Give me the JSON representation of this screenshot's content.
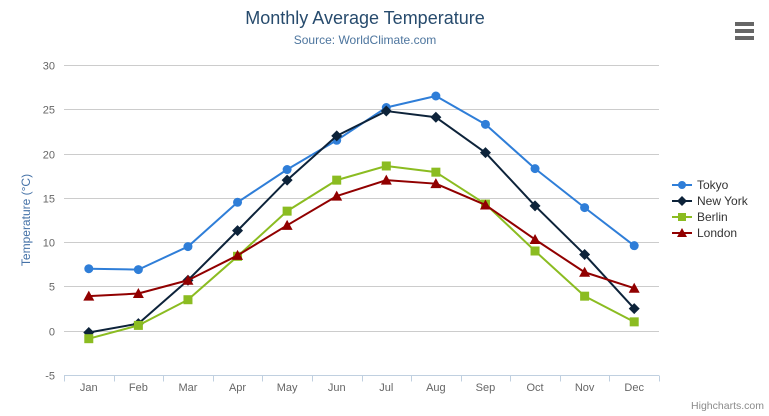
{
  "header": {
    "title": "Monthly Average Temperature",
    "subtitle": "Source: WorldClimate.com"
  },
  "menu": {
    "icon": "hamburger-icon"
  },
  "credit": "Highcharts.com",
  "palette": {
    "title_color": "#274b6d",
    "subtitle_color": "#4d759e",
    "axis_title_color": "#4572a7",
    "tick_label_color": "#666666",
    "grid_color": "#cccccc",
    "axis_line_color": "#c0d0e0",
    "legend_text_color": "#333333",
    "menu_icon_color": "#666666",
    "credit_color": "#8a8a8a"
  },
  "chart_data": {
    "type": "line",
    "title": "Monthly Average Temperature",
    "subtitle": "Source: WorldClimate.com",
    "categories": [
      "Jan",
      "Feb",
      "Mar",
      "Apr",
      "May",
      "Jun",
      "Jul",
      "Aug",
      "Sep",
      "Oct",
      "Nov",
      "Dec"
    ],
    "series": [
      {
        "name": "Tokyo",
        "color": "#2f7ed8",
        "marker": "circle",
        "values": [
          7.0,
          6.9,
          9.5,
          14.5,
          18.2,
          21.5,
          25.2,
          26.5,
          23.3,
          18.3,
          13.9,
          9.6
        ]
      },
      {
        "name": "New York",
        "color": "#0d233a",
        "marker": "diamond",
        "values": [
          -0.2,
          0.8,
          5.7,
          11.3,
          17.0,
          22.0,
          24.8,
          24.1,
          20.1,
          14.1,
          8.6,
          2.5
        ]
      },
      {
        "name": "Berlin",
        "color": "#8bbc21",
        "marker": "square",
        "values": [
          -0.9,
          0.6,
          3.5,
          8.4,
          13.5,
          17.0,
          18.6,
          17.9,
          14.3,
          9.0,
          3.9,
          1.0
        ]
      },
      {
        "name": "London",
        "color": "#910000",
        "marker": "triangle",
        "values": [
          3.9,
          4.2,
          5.7,
          8.5,
          11.9,
          15.2,
          17.0,
          16.6,
          14.2,
          10.3,
          6.6,
          4.8
        ]
      }
    ],
    "xlabel": "",
    "ylabel": "Temperature (°C)",
    "ylim": [
      -5,
      30
    ],
    "ytick_step": 5,
    "grid": true,
    "legend_position": "right"
  }
}
